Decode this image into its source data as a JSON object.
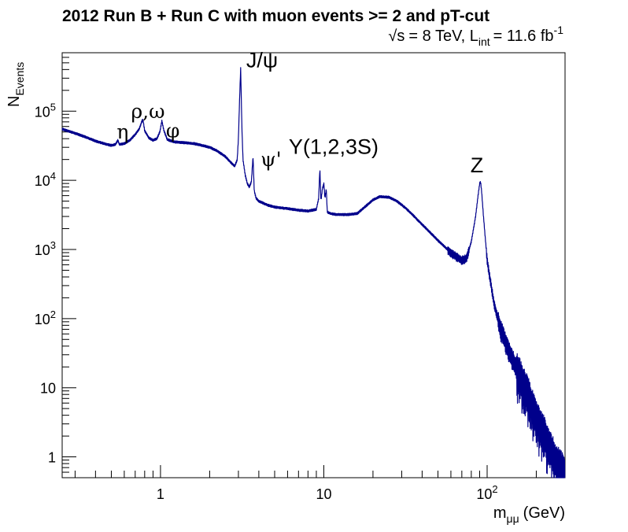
{
  "chart_data": {
    "type": "line",
    "title": "2012 Run B + Run C with muon events >= 2 and pT-cut",
    "subtitle": {
      "sqrt": "√s",
      "energy": "= 8 TeV, L",
      "lumi_sub": "int",
      "lumi_value": "= 11.6 fb",
      "lumi_exp": "-1"
    },
    "ylabel": {
      "base": "N",
      "sub": "Events"
    },
    "xlabel": {
      "base": "m",
      "sub": "μμ",
      "unit": "(GeV)"
    },
    "xscale": "log",
    "yscale": "log",
    "xlim": [
      0.25,
      300
    ],
    "ylim": [
      0.5,
      700000
    ],
    "grid": false,
    "legend": "none",
    "line_color": "#00008b",
    "x_tick_labels": [
      {
        "x": 1,
        "base": "1",
        "exp": ""
      },
      {
        "x": 10,
        "base": "10",
        "exp": ""
      },
      {
        "x": 100,
        "base": "10",
        "exp": "2"
      }
    ],
    "y_tick_labels": [
      {
        "y": 1,
        "base": "1",
        "exp": ""
      },
      {
        "y": 10,
        "base": "10",
        "exp": ""
      },
      {
        "y": 100,
        "base": "10",
        "exp": "2"
      },
      {
        "y": 1000,
        "base": "10",
        "exp": "3"
      },
      {
        "y": 10000,
        "base": "10",
        "exp": "4"
      },
      {
        "y": 100000,
        "base": "10",
        "exp": "5"
      }
    ],
    "annotations": [
      {
        "text": "η",
        "x": 0.54,
        "y": 40000,
        "font": "greek"
      },
      {
        "text": "ρ,ω",
        "x": 0.66,
        "y": 80000,
        "font": "greek"
      },
      {
        "text": "φ",
        "x": 1.08,
        "y": 42000,
        "font": "greek"
      },
      {
        "text": "J/ψ",
        "x": 3.35,
        "y": 430000,
        "font": "roman"
      },
      {
        "text": "ψ'",
        "x": 4.1,
        "y": 16000,
        "font": "greek"
      },
      {
        "text": "Y(1,2,3S)",
        "x": 6.1,
        "y": 24000,
        "font": "roman"
      },
      {
        "text": "Z",
        "x": 79,
        "y": 13000,
        "font": "roman"
      }
    ],
    "series": [
      {
        "x": [
          0.25,
          0.3,
          0.35,
          0.4,
          0.45,
          0.5,
          0.53,
          0.548,
          0.56,
          0.6,
          0.65,
          0.7,
          0.74,
          0.775,
          0.785,
          0.8,
          0.85,
          0.9,
          0.95,
          0.99,
          1.02,
          1.05,
          1.1,
          1.2,
          1.4,
          1.6,
          1.8,
          2.0,
          2.2,
          2.5,
          2.7,
          2.85,
          2.95,
          3.0,
          3.05,
          3.097,
          3.15,
          3.2,
          3.3,
          3.4,
          3.5,
          3.6,
          3.686,
          3.75,
          3.85,
          4.0,
          4.5,
          5.0,
          6.0,
          7.0,
          8.0,
          9.0,
          9.3,
          9.46,
          9.6,
          9.8,
          10.02,
          10.15,
          10.355,
          10.5,
          11.0,
          12.0,
          14.0,
          16.0,
          18.0,
          20.0,
          22.0,
          25.0,
          28.0,
          32.0,
          40.0,
          50.0,
          60.0,
          70.0,
          75.0,
          80.0,
          85.0,
          88.0,
          90.0,
          91.2,
          92.5,
          95.0,
          100.0,
          110.0,
          120.0,
          140.0,
          160.0,
          180.0,
          200.0,
          230.0,
          260.0,
          300.0
        ],
        "y": [
          55000,
          48000,
          42000,
          37000,
          34000,
          32000,
          33000,
          38000,
          33000,
          34000,
          38000,
          46000,
          55000,
          75000,
          70000,
          52000,
          41000,
          38000,
          40000,
          50000,
          72000,
          52000,
          39000,
          36000,
          35000,
          34000,
          32000,
          30000,
          27000,
          22000,
          18000,
          16000,
          20000,
          40000,
          150000,
          420000,
          60000,
          20000,
          12000,
          9000,
          8000,
          9500,
          22000,
          7000,
          5500,
          5000,
          4400,
          4100,
          3900,
          3700,
          3600,
          3800,
          5500,
          15000,
          5000,
          7500,
          9000,
          5500,
          7500,
          3500,
          3300,
          3200,
          3200,
          3300,
          4200,
          5200,
          5800,
          5700,
          5000,
          3900,
          2300,
          1350,
          900,
          700,
          750,
          1300,
          3000,
          6000,
          9000,
          9500,
          7000,
          3000,
          700,
          170,
          75,
          30,
          15,
          8,
          4,
          2,
          1,
          0.6
        ]
      }
    ]
  }
}
